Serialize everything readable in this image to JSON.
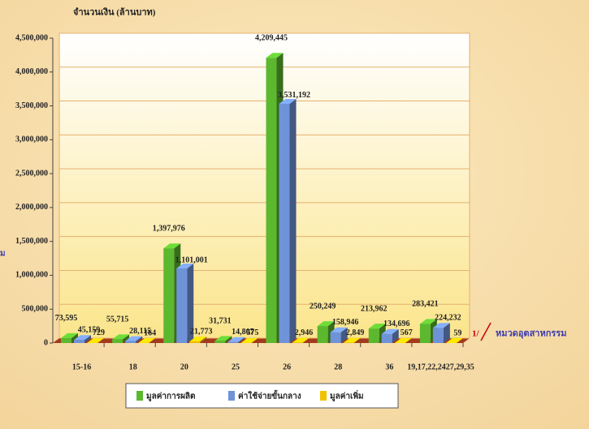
{
  "chart_data": {
    "type": "bar3d",
    "title": "จำนวนเงิน (ล้านบาท)",
    "xlabel": "หมวดอุตสาหกรรม",
    "xlabel_note": "1/",
    "left_fragment": "ม",
    "categories": [
      "15-16",
      "18",
      "20",
      "25",
      "26",
      "28",
      "36",
      "19,17,22,2427,29,35"
    ],
    "series": [
      {
        "name": "มูลค่าการผลิต",
        "color": "#5cb82e",
        "values": [
          73595,
          55715,
          1397976,
          31731,
          4209445,
          250249,
          213962,
          283421
        ],
        "value_labels": [
          "73,595",
          "55,715",
          "1,397,976",
          "31,731",
          "4,209,445",
          "250,249",
          "213,962",
          "283,421"
        ]
      },
      {
        "name": "ค่าใช้จ่ายขั้นกลาง",
        "color": "#6f93d8",
        "values": [
          45159,
          28115,
          1101001,
          14807,
          3531192,
          158946,
          134696,
          224232
        ],
        "value_labels": [
          "45,159",
          "28,115",
          "1,101,001",
          "14,807",
          "3,531,192",
          "158,946",
          "134,696",
          "224,232"
        ]
      },
      {
        "name": "มูลค่าเพิ่ม",
        "color": "#f2c200",
        "values": [
          729,
          164,
          21773,
          575,
          2946,
          2849,
          567,
          59
        ],
        "value_labels": [
          "729",
          "164",
          "21,773",
          "575",
          "2,946",
          "2,849",
          "567",
          "59"
        ]
      }
    ],
    "ylim": [
      0,
      4500000
    ],
    "yticks": [
      0,
      {
        "value": 500000,
        "label": "500,000"
      },
      {
        "value": 1000000,
        "label": "1,000,000"
      },
      {
        "value": 1500000,
        "label": "1,500,000"
      },
      {
        "value": 2000000,
        "label": "2,000,000"
      },
      {
        "value": 2500000,
        "label": "2,500,000"
      },
      {
        "value": 3000000,
        "label": "3,000,000"
      },
      {
        "value": 3500000,
        "label": "3,500,000"
      },
      {
        "value": 4000000,
        "label": "4,000,000"
      },
      {
        "value": 4500000,
        "label": "4,500,000"
      }
    ],
    "grid": true
  }
}
